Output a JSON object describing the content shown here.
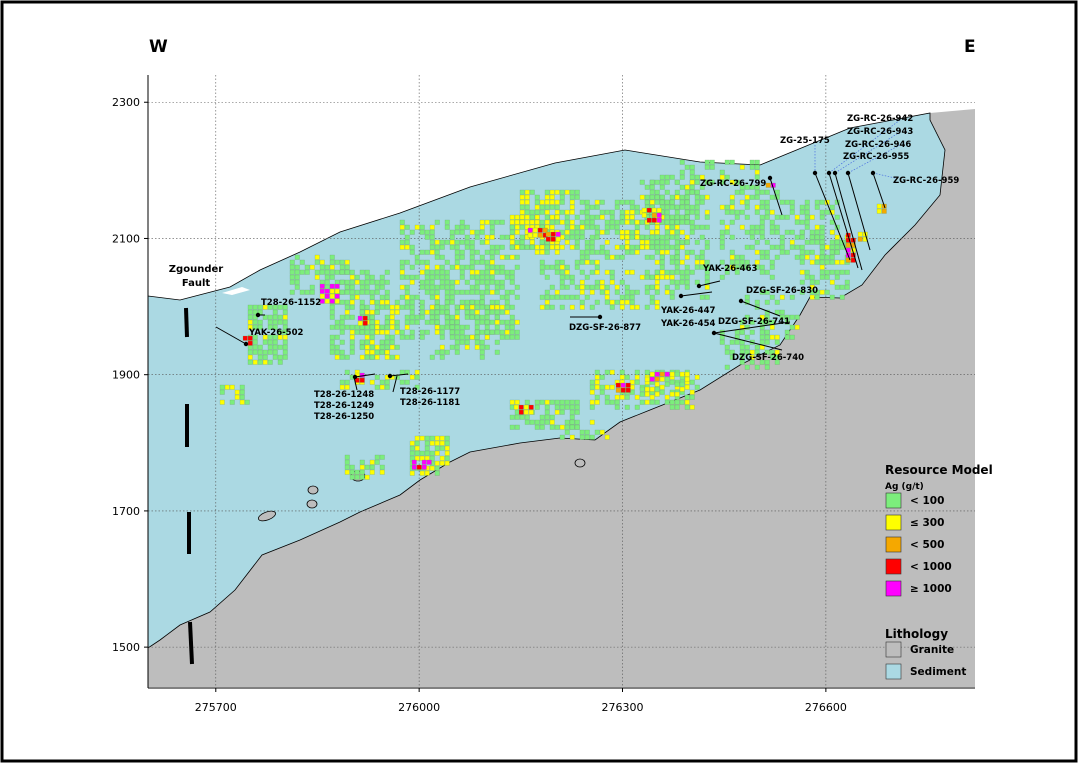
{
  "orientation": {
    "west": "W",
    "east": "E"
  },
  "axes": {
    "x_ticks": [
      275700,
      276000,
      276300,
      276600
    ],
    "y_ticks": [
      1500,
      1700,
      1900,
      2100,
      2300
    ],
    "x_range": [
      275600,
      276820
    ],
    "y_range": [
      1440,
      2340
    ]
  },
  "fault_label": [
    "Zgounder",
    "Fault"
  ],
  "drillholes": [
    "T28-26-1152",
    "YAK-26-502",
    "T28-26-1248",
    "T28-26-1249",
    "T28-26-1250",
    "T28-26-1177",
    "T28-26-1181",
    "DZG-SF-26-877",
    "YAK-26-463",
    "YAK-26-447",
    "YAK-26-454",
    "DZG-SF-26-830",
    "DZG-SF-26-741",
    "DZG-SF-26-740",
    "ZG-RC-26-799",
    "ZG-25-175",
    "ZG-RC-26-942",
    "ZG-RC-26-943",
    "ZG-RC-26-946",
    "ZG-RC-26-955",
    "ZG-RC-26-959"
  ],
  "legend": {
    "resource_title": "Resource Model",
    "resource_subtitle": "Ag (g/t)",
    "resource_items": [
      {
        "label": "< 100",
        "color": "#7cee7c"
      },
      {
        "label": "≤ 300",
        "color": "#ffff00"
      },
      {
        "label": "< 500",
        "color": "#f5a800"
      },
      {
        "label": "< 1000",
        "color": "#ff0000"
      },
      {
        "label": "≥ 1000",
        "color": "#ff00ff"
      }
    ],
    "lithology_title": "Lithology",
    "lithology_items": [
      {
        "label": "Granite",
        "color": "#bdbdbd"
      },
      {
        "label": "Sediment",
        "color": "#abd9e3"
      }
    ]
  }
}
